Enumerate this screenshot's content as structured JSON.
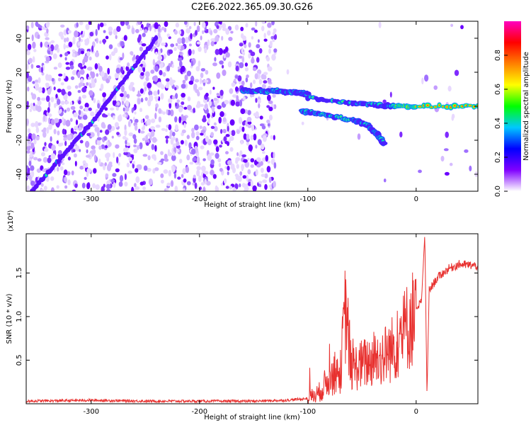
{
  "figure": {
    "title": "C2E6.2022.365.09.30.G26"
  },
  "chart_data": [
    {
      "type": "heatmap",
      "title": "C2E6.2022.365.09.30.G26",
      "xlabel": "Height of straight line (km)",
      "ylabel": "Frequency (Hz)",
      "xlim": [
        -360,
        57
      ],
      "ylim": [
        -50,
        50
      ],
      "xticks": [
        -300,
        -200,
        -100,
        0
      ],
      "yticks": [
        -40,
        -20,
        0,
        20,
        40
      ],
      "colorbar": {
        "label": "Normalized spectral amplitude",
        "range": [
          0,
          1
        ],
        "ticks": [
          "0.0",
          "0.2",
          "0.4",
          "0.6",
          "0.8"
        ],
        "colormap": [
          "#ffffff",
          "#8000ff",
          "#0000ff",
          "#00c8ff",
          "#00ff00",
          "#ffff00",
          "#ff8000",
          "#ff0000",
          "#ff00c0"
        ]
      },
      "features": [
        {
          "name": "diagonal streak",
          "x": [
            -355,
            -300,
            -240
          ],
          "y": [
            -50,
            -10,
            40
          ]
        },
        {
          "name": "upper branch",
          "x": [
            -160,
            -130,
            -110,
            -100
          ],
          "y": [
            9,
            9,
            8,
            7
          ]
        },
        {
          "name": "middle branch",
          "x": [
            -100,
            -60,
            -40,
            -20,
            0,
            57
          ],
          "y": [
            5,
            2,
            1,
            0,
            0,
            0
          ]
        },
        {
          "name": "lower branch",
          "x": [
            -105,
            -90,
            -60,
            -45,
            -35,
            -30
          ],
          "y": [
            -3,
            -4,
            -8,
            -11,
            -17,
            -22
          ]
        }
      ],
      "grid": false,
      "legend": "colorbar right"
    },
    {
      "type": "line",
      "xlabel": "Height of straight line (km)",
      "ylabel": "SNR (10 * v/v)",
      "ymultiplier": "(x10⁴)",
      "xlim": [
        -360,
        57
      ],
      "ylim": [
        0,
        1.95
      ],
      "xticks": [
        -300,
        -200,
        -100,
        0
      ],
      "yticks": [
        0.5,
        1.0,
        1.5
      ],
      "series": [
        {
          "color": "#e8312f",
          "x": [
            -360,
            -300,
            -250,
            -200,
            -150,
            -120,
            -110,
            -100,
            -90,
            -80,
            -70,
            -65,
            -60,
            -50,
            -40,
            -30,
            -20,
            -10,
            0,
            5,
            8,
            10,
            12,
            20,
            30,
            40,
            57
          ],
          "y": [
            0.03,
            0.04,
            0.03,
            0.03,
            0.03,
            0.04,
            0.05,
            0.06,
            0.12,
            0.3,
            0.35,
            1.1,
            0.4,
            0.45,
            0.5,
            0.55,
            0.65,
            0.85,
            1.05,
            1.2,
            1.95,
            0.1,
            1.3,
            1.45,
            1.55,
            1.6,
            1.58
          ]
        }
      ],
      "grid": false,
      "legend": "none"
    }
  ]
}
